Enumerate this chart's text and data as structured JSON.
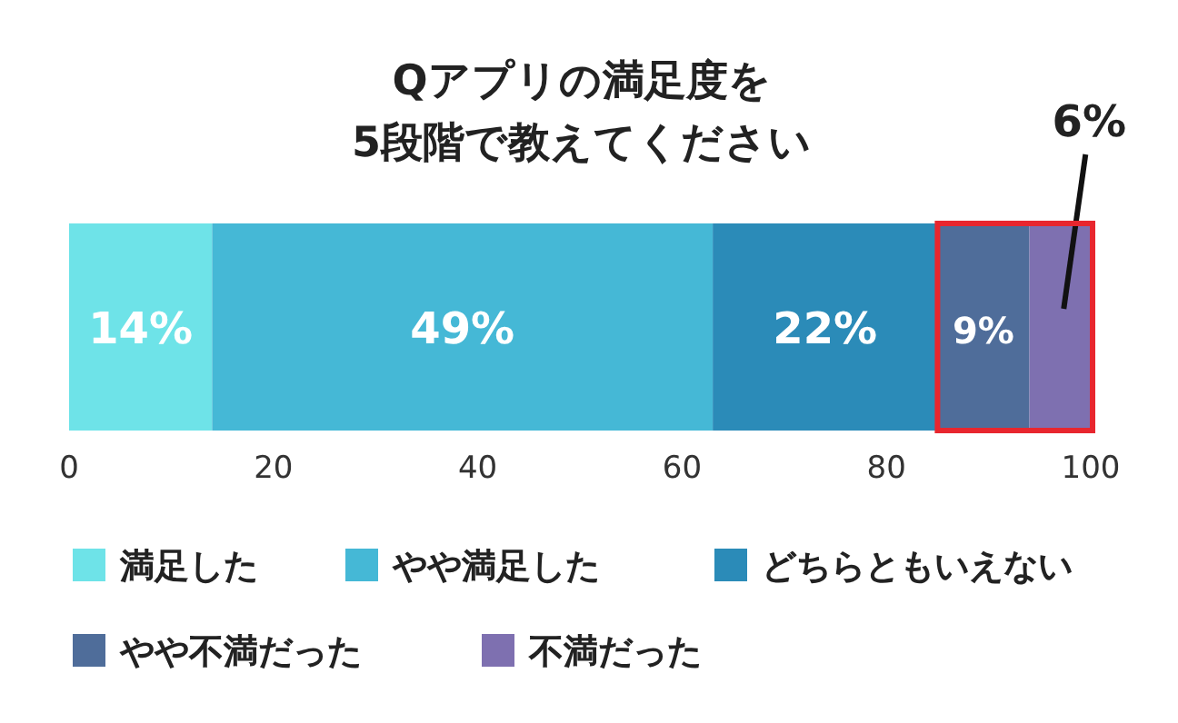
{
  "chart_data": {
    "type": "bar",
    "title": "Qアプリの満足度を\n5段階で教えてください",
    "orientation": "horizontal",
    "stacked": true,
    "categories": [
      null
    ],
    "series": [
      {
        "name": "満足した",
        "color": "#6ee3e8",
        "values": [
          14
        ],
        "value_labels": [
          "14%"
        ]
      },
      {
        "name": "やや満足した",
        "color": "#45b8d6",
        "values": [
          49
        ],
        "value_labels": [
          "49%"
        ]
      },
      {
        "name": "どちらともいえない",
        "color": "#2b8bb8",
        "values": [
          22
        ],
        "value_labels": [
          "22%"
        ]
      },
      {
        "name": "やや不満だった",
        "color": "#4f6d9a",
        "values": [
          9
        ],
        "value_labels": [
          "9%"
        ]
      },
      {
        "name": "不満だった",
        "color": "#7e70b0",
        "values": [
          6
        ],
        "value_labels": [
          "6%"
        ]
      }
    ],
    "xlim": [
      0,
      100
    ],
    "xticks": [
      0,
      20,
      40,
      60,
      80,
      100
    ],
    "tick_labels": "x",
    "legend": "bottom",
    "grid": false
  }
}
